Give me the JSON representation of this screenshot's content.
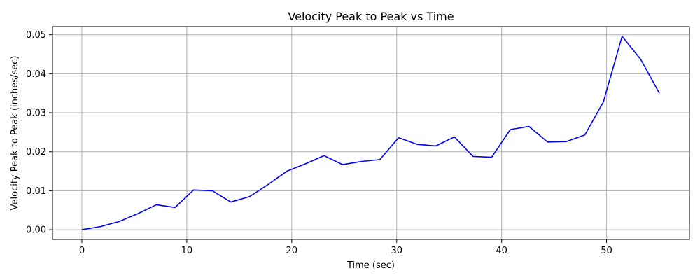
{
  "chart_data": {
    "type": "line",
    "title": "Velocity Peak to Peak vs Time",
    "xlabel": "Time (sec)",
    "ylabel": "Velocity Peak to Peak (inches/sec)",
    "xlim": [
      -2.8,
      57.9
    ],
    "ylim": [
      -0.0025,
      0.0521
    ],
    "xticks": [
      0,
      10,
      20,
      30,
      40,
      50
    ],
    "xtick_labels": [
      "0",
      "10",
      "20",
      "30",
      "40",
      "50"
    ],
    "yticks": [
      0.0,
      0.01,
      0.02,
      0.03,
      0.04,
      0.05
    ],
    "ytick_labels": [
      "0.00",
      "0.01",
      "0.02",
      "0.03",
      "0.04",
      "0.05"
    ],
    "grid": true,
    "legend": "none",
    "series": [
      {
        "color": "#0000ff",
        "x": [
          0.0,
          1.78,
          3.55,
          5.33,
          7.1,
          8.88,
          10.65,
          12.43,
          14.2,
          15.98,
          17.75,
          19.53,
          21.3,
          23.08,
          24.85,
          26.63,
          28.4,
          30.18,
          31.95,
          33.73,
          35.5,
          37.28,
          39.05,
          40.83,
          42.6,
          44.38,
          46.15,
          47.93,
          49.7,
          51.48,
          53.25,
          55.03
        ],
        "y": [
          0.0,
          0.0008,
          0.0021,
          0.0041,
          0.0064,
          0.0057,
          0.0102,
          0.01,
          0.0071,
          0.0085,
          0.0116,
          0.015,
          0.0169,
          0.019,
          0.0167,
          0.0175,
          0.018,
          0.0236,
          0.0219,
          0.0215,
          0.0238,
          0.0188,
          0.0186,
          0.0257,
          0.0265,
          0.0225,
          0.0226,
          0.0243,
          0.0328,
          0.0496,
          0.0437,
          0.035
        ]
      }
    ]
  }
}
